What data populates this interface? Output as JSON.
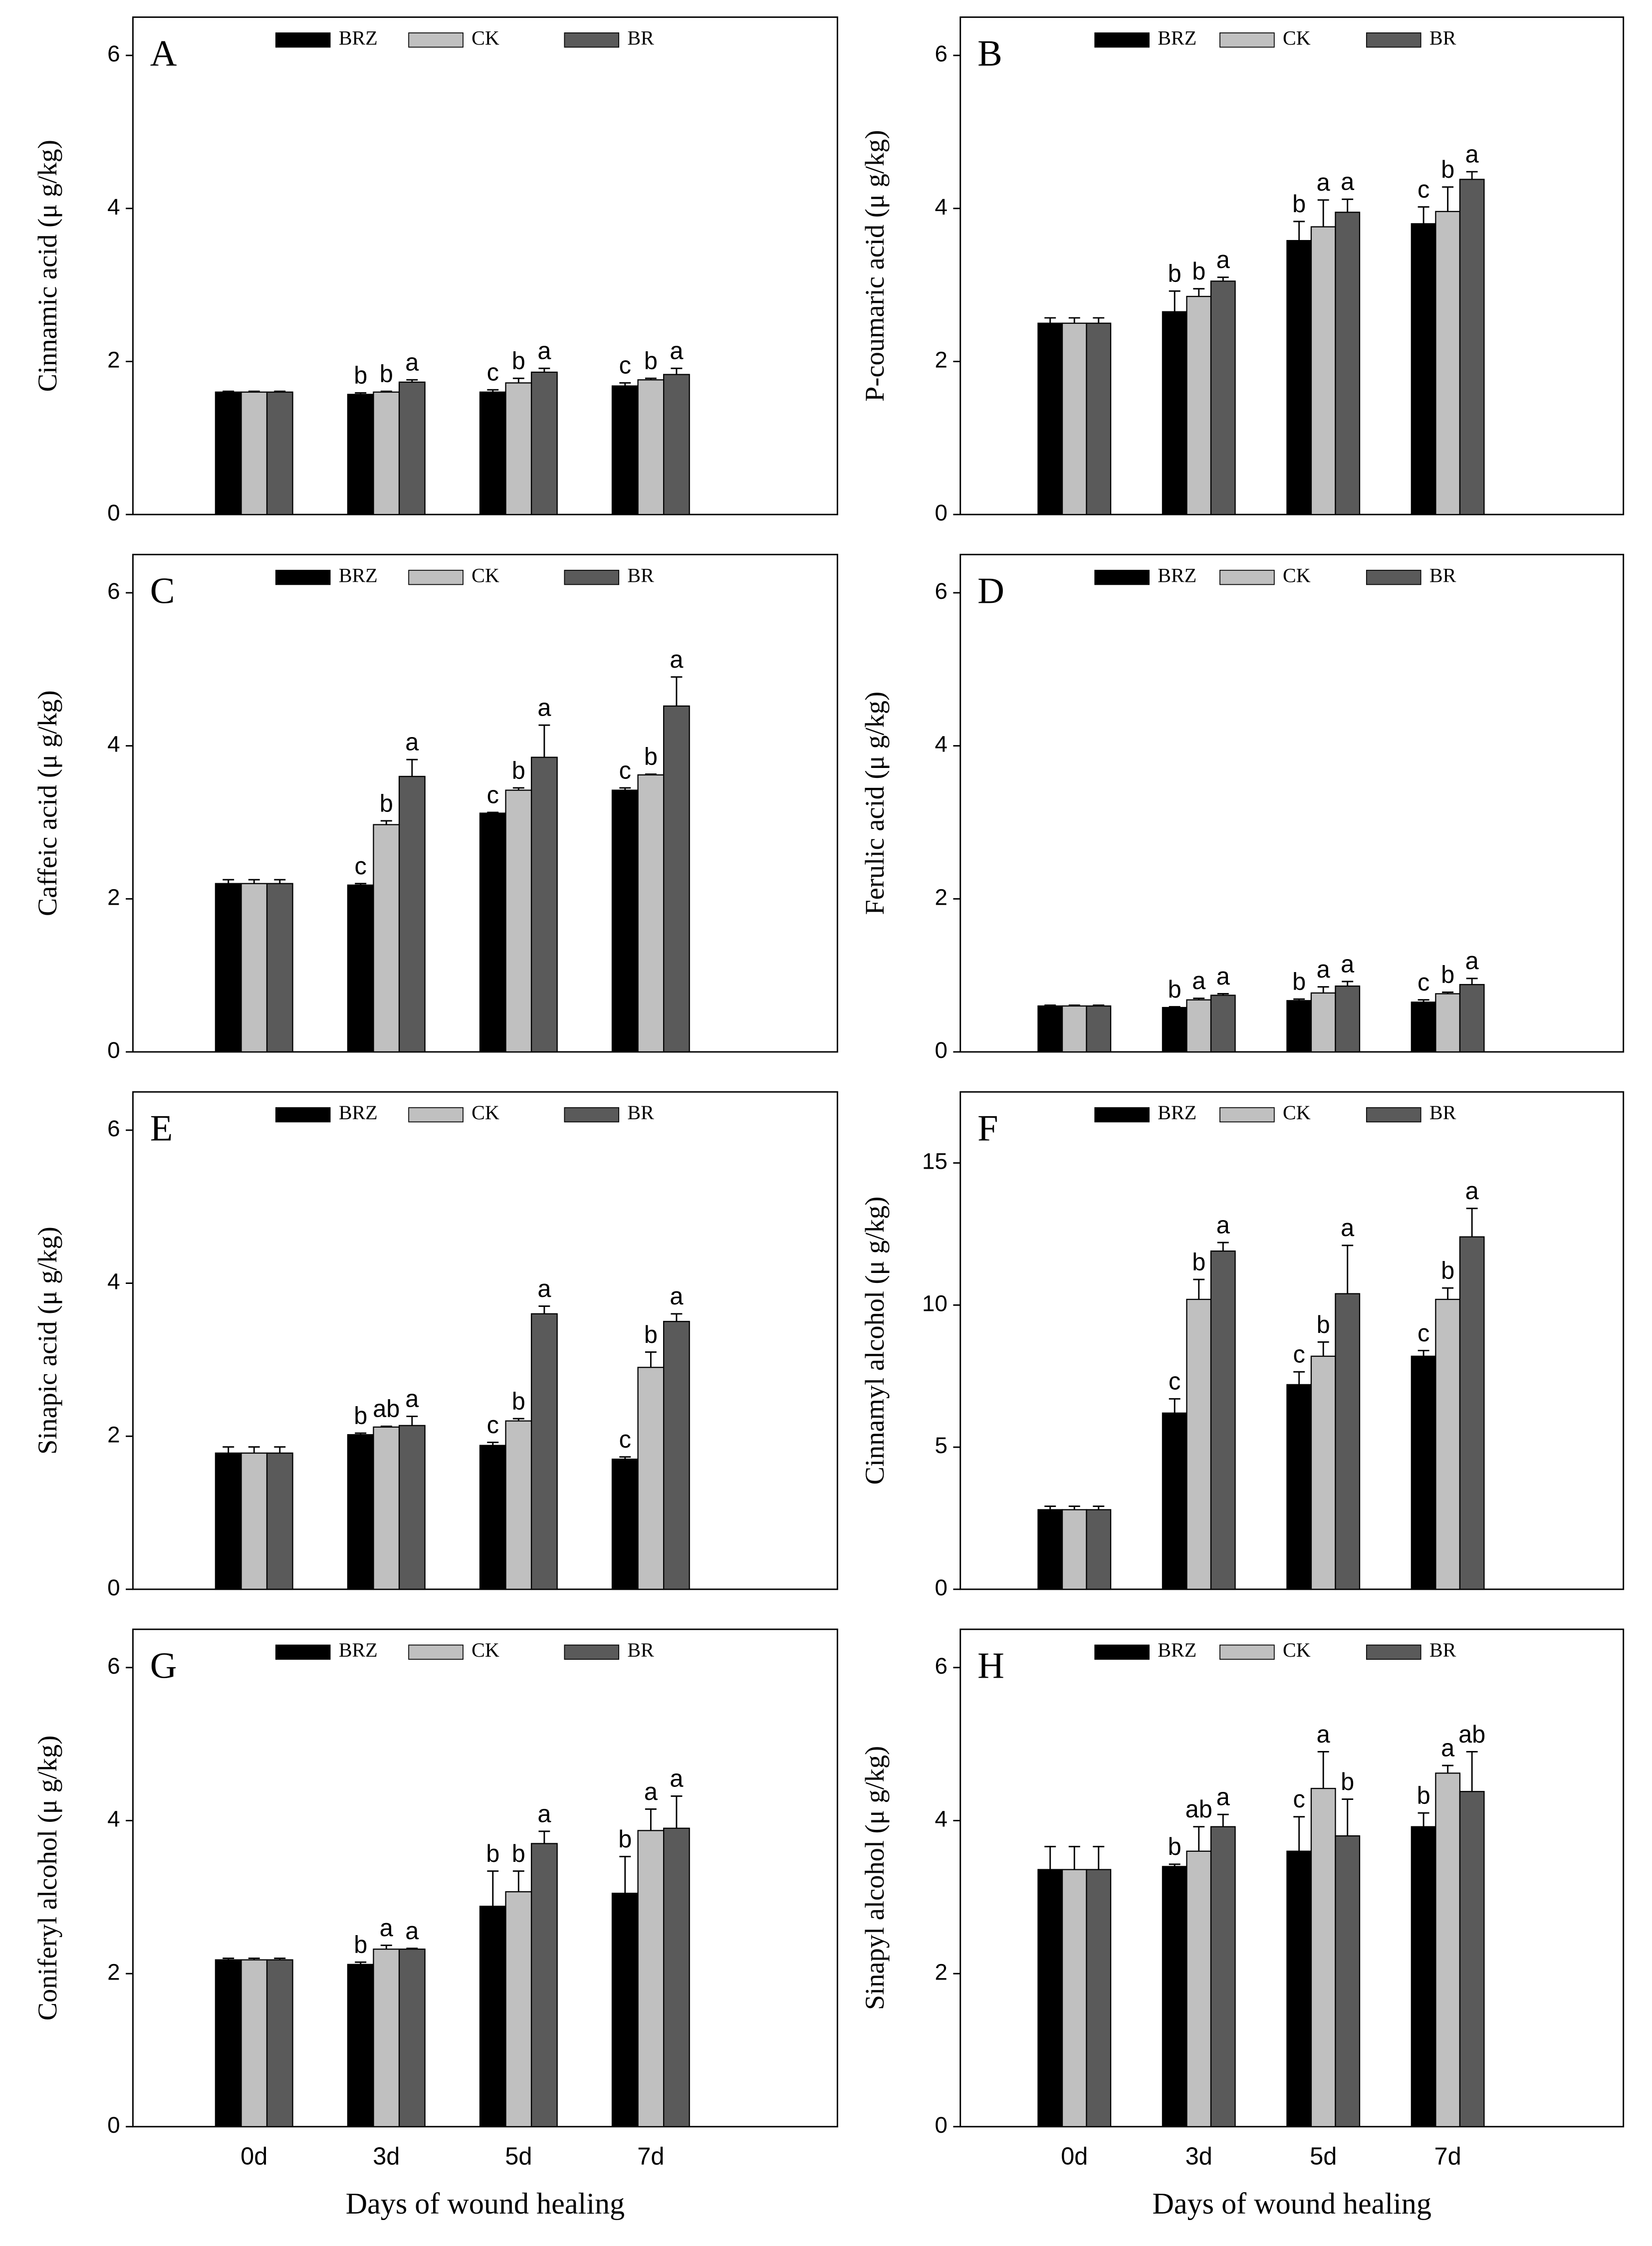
{
  "chart_data": [
    {
      "type": "bar",
      "panel": "A",
      "ylabel": "Cinnamic acid (μ g/kg)",
      "ylim": [
        0,
        6.5
      ],
      "yticks": [
        0,
        2,
        4,
        6
      ],
      "series": [
        {
          "name": "BRZ",
          "color": "#000000",
          "values": [
            1.6,
            1.57,
            1.6,
            1.68
          ],
          "errors": [
            0.01,
            0.02,
            0.03,
            0.04
          ],
          "labels": [
            null,
            "b",
            "c",
            "c"
          ]
        },
        {
          "name": "CK",
          "color": "#c0c0c0",
          "values": [
            1.6,
            1.6,
            1.72,
            1.76
          ],
          "errors": [
            0.01,
            0.01,
            0.06,
            0.02
          ],
          "labels": [
            null,
            "b",
            "b",
            "b"
          ]
        },
        {
          "name": "BR",
          "color": "#5a5a5a",
          "values": [
            1.6,
            1.73,
            1.86,
            1.83
          ],
          "errors": [
            0.01,
            0.03,
            0.05,
            0.08
          ],
          "labels": [
            null,
            "a",
            "a",
            "a"
          ]
        }
      ]
    },
    {
      "type": "bar",
      "panel": "B",
      "ylabel": "P-coumaric acid (μ g/kg)",
      "ylim": [
        0,
        6.5
      ],
      "yticks": [
        0,
        2,
        4,
        6
      ],
      "series": [
        {
          "name": "BRZ",
          "color": "#000000",
          "values": [
            2.5,
            2.65,
            3.58,
            3.8
          ],
          "errors": [
            0.07,
            0.27,
            0.25,
            0.22
          ],
          "labels": [
            null,
            "b",
            "b",
            "c"
          ]
        },
        {
          "name": "CK",
          "color": "#c0c0c0",
          "values": [
            2.5,
            2.85,
            3.76,
            3.96
          ],
          "errors": [
            0.07,
            0.1,
            0.35,
            0.32
          ],
          "labels": [
            null,
            "b",
            "a",
            "b"
          ]
        },
        {
          "name": "BR",
          "color": "#5a5a5a",
          "values": [
            2.5,
            3.05,
            3.95,
            4.38
          ],
          "errors": [
            0.07,
            0.05,
            0.17,
            0.1
          ],
          "labels": [
            null,
            "a",
            "a",
            "a"
          ]
        }
      ]
    },
    {
      "type": "bar",
      "panel": "C",
      "ylabel": "Caffeic acid (μ g/kg)",
      "ylim": [
        0,
        6.5
      ],
      "yticks": [
        0,
        2,
        4,
        6
      ],
      "series": [
        {
          "name": "BRZ",
          "color": "#000000",
          "values": [
            2.2,
            2.18,
            3.12,
            3.42
          ],
          "errors": [
            0.05,
            0.02,
            0.01,
            0.03
          ],
          "labels": [
            null,
            "c",
            "c",
            "c"
          ]
        },
        {
          "name": "CK",
          "color": "#c0c0c0",
          "values": [
            2.2,
            2.97,
            3.42,
            3.62
          ],
          "errors": [
            0.05,
            0.05,
            0.03,
            0.01
          ],
          "labels": [
            null,
            "b",
            "b",
            "b"
          ]
        },
        {
          "name": "BR",
          "color": "#5a5a5a",
          "values": [
            2.2,
            3.6,
            3.85,
            4.52
          ],
          "errors": [
            0.05,
            0.22,
            0.42,
            0.38
          ],
          "labels": [
            null,
            "a",
            "a",
            "a"
          ]
        }
      ]
    },
    {
      "type": "bar",
      "panel": "D",
      "ylabel": "Ferulic acid (μ g/kg)",
      "ylim": [
        0,
        6.5
      ],
      "yticks": [
        0,
        2,
        4,
        6
      ],
      "series": [
        {
          "name": "BRZ",
          "color": "#000000",
          "values": [
            0.6,
            0.58,
            0.67,
            0.65
          ],
          "errors": [
            0.01,
            0.01,
            0.02,
            0.03
          ],
          "labels": [
            null,
            "b",
            "b",
            "c"
          ]
        },
        {
          "name": "CK",
          "color": "#c0c0c0",
          "values": [
            0.6,
            0.68,
            0.77,
            0.76
          ],
          "errors": [
            0.01,
            0.02,
            0.08,
            0.02
          ],
          "labels": [
            null,
            "a",
            "a",
            "b"
          ]
        },
        {
          "name": "BR",
          "color": "#5a5a5a",
          "values": [
            0.6,
            0.74,
            0.86,
            0.88
          ],
          "errors": [
            0.01,
            0.02,
            0.06,
            0.08
          ],
          "labels": [
            null,
            "a",
            "a",
            "a"
          ]
        }
      ]
    },
    {
      "type": "bar",
      "panel": "E",
      "ylabel": "Sinapic acid (μ g/kg)",
      "ylim": [
        0,
        6.5
      ],
      "yticks": [
        0,
        2,
        4,
        6
      ],
      "series": [
        {
          "name": "BRZ",
          "color": "#000000",
          "values": [
            1.78,
            2.02,
            1.88,
            1.7
          ],
          "errors": [
            0.08,
            0.02,
            0.04,
            0.03
          ],
          "labels": [
            null,
            "b",
            "c",
            "c"
          ]
        },
        {
          "name": "CK",
          "color": "#c0c0c0",
          "values": [
            1.78,
            2.12,
            2.2,
            2.9
          ],
          "errors": [
            0.08,
            0.01,
            0.03,
            0.2
          ],
          "labels": [
            null,
            "ab",
            "b",
            "b"
          ]
        },
        {
          "name": "BR",
          "color": "#5a5a5a",
          "values": [
            1.78,
            2.14,
            3.6,
            3.5
          ],
          "errors": [
            0.08,
            0.12,
            0.1,
            0.1
          ],
          "labels": [
            null,
            "a",
            "a",
            "a"
          ]
        }
      ]
    },
    {
      "type": "bar",
      "panel": "F",
      "ylabel": "Cinnamyl alcohol (μ g/kg)",
      "ylim": [
        0,
        17.5
      ],
      "yticks": [
        0,
        5,
        10,
        15
      ],
      "series": [
        {
          "name": "BRZ",
          "color": "#000000",
          "values": [
            2.8,
            6.2,
            7.2,
            8.2
          ],
          "errors": [
            0.12,
            0.5,
            0.45,
            0.2
          ],
          "labels": [
            null,
            "c",
            "c",
            "c"
          ]
        },
        {
          "name": "CK",
          "color": "#c0c0c0",
          "values": [
            2.8,
            10.2,
            8.2,
            10.2
          ],
          "errors": [
            0.12,
            0.7,
            0.5,
            0.4
          ],
          "labels": [
            null,
            "b",
            "b",
            "b"
          ]
        },
        {
          "name": "BR",
          "color": "#5a5a5a",
          "values": [
            2.8,
            11.9,
            10.4,
            12.4
          ],
          "errors": [
            0.12,
            0.3,
            1.7,
            1.0
          ],
          "labels": [
            null,
            "a",
            "a",
            "a"
          ]
        }
      ]
    },
    {
      "type": "bar",
      "panel": "G",
      "ylabel": "Coniferyl alcohol (μ g/kg)",
      "xlabel": "Days of wound healing",
      "categories": [
        "0d",
        "3d",
        "5d",
        "7d"
      ],
      "ylim": [
        0,
        6.5
      ],
      "yticks": [
        0,
        2,
        4,
        6
      ],
      "series": [
        {
          "name": "BRZ",
          "color": "#000000",
          "values": [
            2.18,
            2.12,
            2.88,
            3.05
          ],
          "errors": [
            0.02,
            0.03,
            0.46,
            0.48
          ],
          "labels": [
            null,
            "b",
            "b",
            "b"
          ]
        },
        {
          "name": "CK",
          "color": "#c0c0c0",
          "values": [
            2.18,
            2.32,
            3.07,
            3.87
          ],
          "errors": [
            0.02,
            0.05,
            0.27,
            0.28
          ],
          "labels": [
            null,
            "a",
            "b",
            "a"
          ]
        },
        {
          "name": "BR",
          "color": "#5a5a5a",
          "values": [
            2.18,
            2.32,
            3.7,
            3.9
          ],
          "errors": [
            0.02,
            0.01,
            0.16,
            0.42
          ],
          "labels": [
            null,
            "a",
            "a",
            "a"
          ]
        }
      ]
    },
    {
      "type": "bar",
      "panel": "H",
      "ylabel": "Sinapyl alcohol (μ g/kg)",
      "xlabel": "Days of wound healing",
      "categories": [
        "0d",
        "3d",
        "5d",
        "7d"
      ],
      "ylim": [
        0,
        6.5
      ],
      "yticks": [
        0,
        2,
        4,
        6
      ],
      "series": [
        {
          "name": "BRZ",
          "color": "#000000",
          "values": [
            3.36,
            3.4,
            3.6,
            3.92
          ],
          "errors": [
            0.3,
            0.03,
            0.45,
            0.18
          ],
          "labels": [
            null,
            "b",
            "c",
            "b"
          ]
        },
        {
          "name": "CK",
          "color": "#c0c0c0",
          "values": [
            3.36,
            3.6,
            4.42,
            4.62
          ],
          "errors": [
            0.3,
            0.32,
            0.48,
            0.1
          ],
          "labels": [
            null,
            "ab",
            "a",
            "a"
          ]
        },
        {
          "name": "BR",
          "color": "#5a5a5a",
          "values": [
            3.36,
            3.92,
            3.8,
            4.38
          ],
          "errors": [
            0.3,
            0.16,
            0.48,
            0.52
          ],
          "labels": [
            null,
            "a",
            "b",
            "ab"
          ]
        }
      ]
    }
  ]
}
